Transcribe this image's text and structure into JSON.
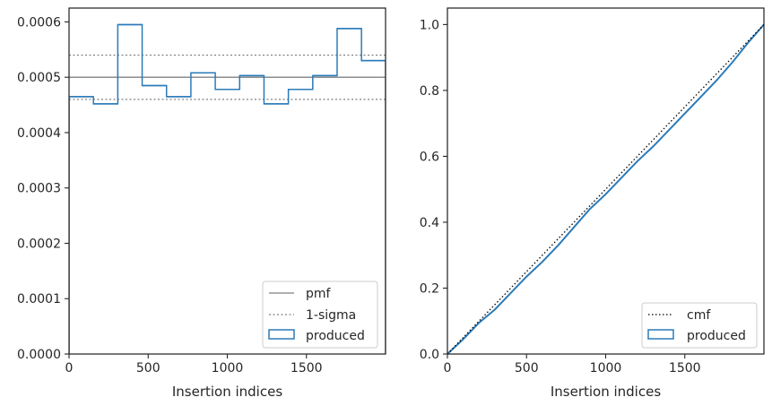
{
  "colors": {
    "produced": "#2b7bb9",
    "reference": "#808080",
    "cmf": "#000000",
    "axes": "#262626"
  },
  "chart_data": [
    {
      "type": "line",
      "xlabel": "Insertion indices",
      "ylabel": "",
      "xlim": [
        0,
        2000
      ],
      "ylim": [
        0,
        0.000625
      ],
      "xticks": [
        0,
        500,
        1000,
        1500
      ],
      "xtick_labels": [
        "0",
        "500",
        "1000",
        "1500"
      ],
      "yticks": [
        0,
        0.0001,
        0.0002,
        0.0003,
        0.0004,
        0.0005,
        0.0006
      ],
      "ytick_labels": [
        "0.0000",
        "0.0001",
        "0.0002",
        "0.0003",
        "0.0004",
        "0.0005",
        "0.0006"
      ],
      "grid": false,
      "legend": "lower-right",
      "legend_entries": [
        "pmf",
        "1-sigma",
        "produced"
      ],
      "pmf": 0.0005,
      "sigma_band": [
        0.00046,
        0.00054
      ],
      "produced_bins": [
        0,
        154,
        308,
        462,
        616,
        770,
        924,
        1078,
        1232,
        1386,
        1540,
        1694,
        1848,
        2000
      ],
      "produced_values": [
        0.000465,
        0.000452,
        0.000595,
        0.000485,
        0.000465,
        0.000508,
        0.000478,
        0.000503,
        0.000452,
        0.000478,
        0.000503,
        0.000588,
        0.00053
      ]
    },
    {
      "type": "line",
      "xlabel": "Insertion indices",
      "ylabel": "",
      "xlim": [
        0,
        2000
      ],
      "ylim": [
        0,
        1.05
      ],
      "xticks": [
        0,
        500,
        1000,
        1500
      ],
      "xtick_labels": [
        "0",
        "500",
        "1000",
        "1500"
      ],
      "yticks": [
        0,
        0.2,
        0.4,
        0.6,
        0.8,
        1.0
      ],
      "ytick_labels": [
        "0.0",
        "0.2",
        "0.4",
        "0.6",
        "0.8",
        "1.0"
      ],
      "grid": false,
      "legend": "lower-right",
      "legend_entries": [
        "cmf",
        "produced"
      ],
      "cmf": {
        "x": [
          0,
          2000
        ],
        "y": [
          0,
          1.0
        ]
      },
      "produced": {
        "x": [
          0,
          100,
          200,
          300,
          400,
          500,
          600,
          700,
          800,
          900,
          1000,
          1100,
          1200,
          1300,
          1400,
          1500,
          1600,
          1700,
          1800,
          1900,
          2000
        ],
        "y": [
          0,
          0.045,
          0.095,
          0.135,
          0.185,
          0.235,
          0.28,
          0.33,
          0.385,
          0.44,
          0.485,
          0.535,
          0.585,
          0.63,
          0.68,
          0.73,
          0.78,
          0.83,
          0.885,
          0.945,
          1.0
        ]
      }
    }
  ]
}
